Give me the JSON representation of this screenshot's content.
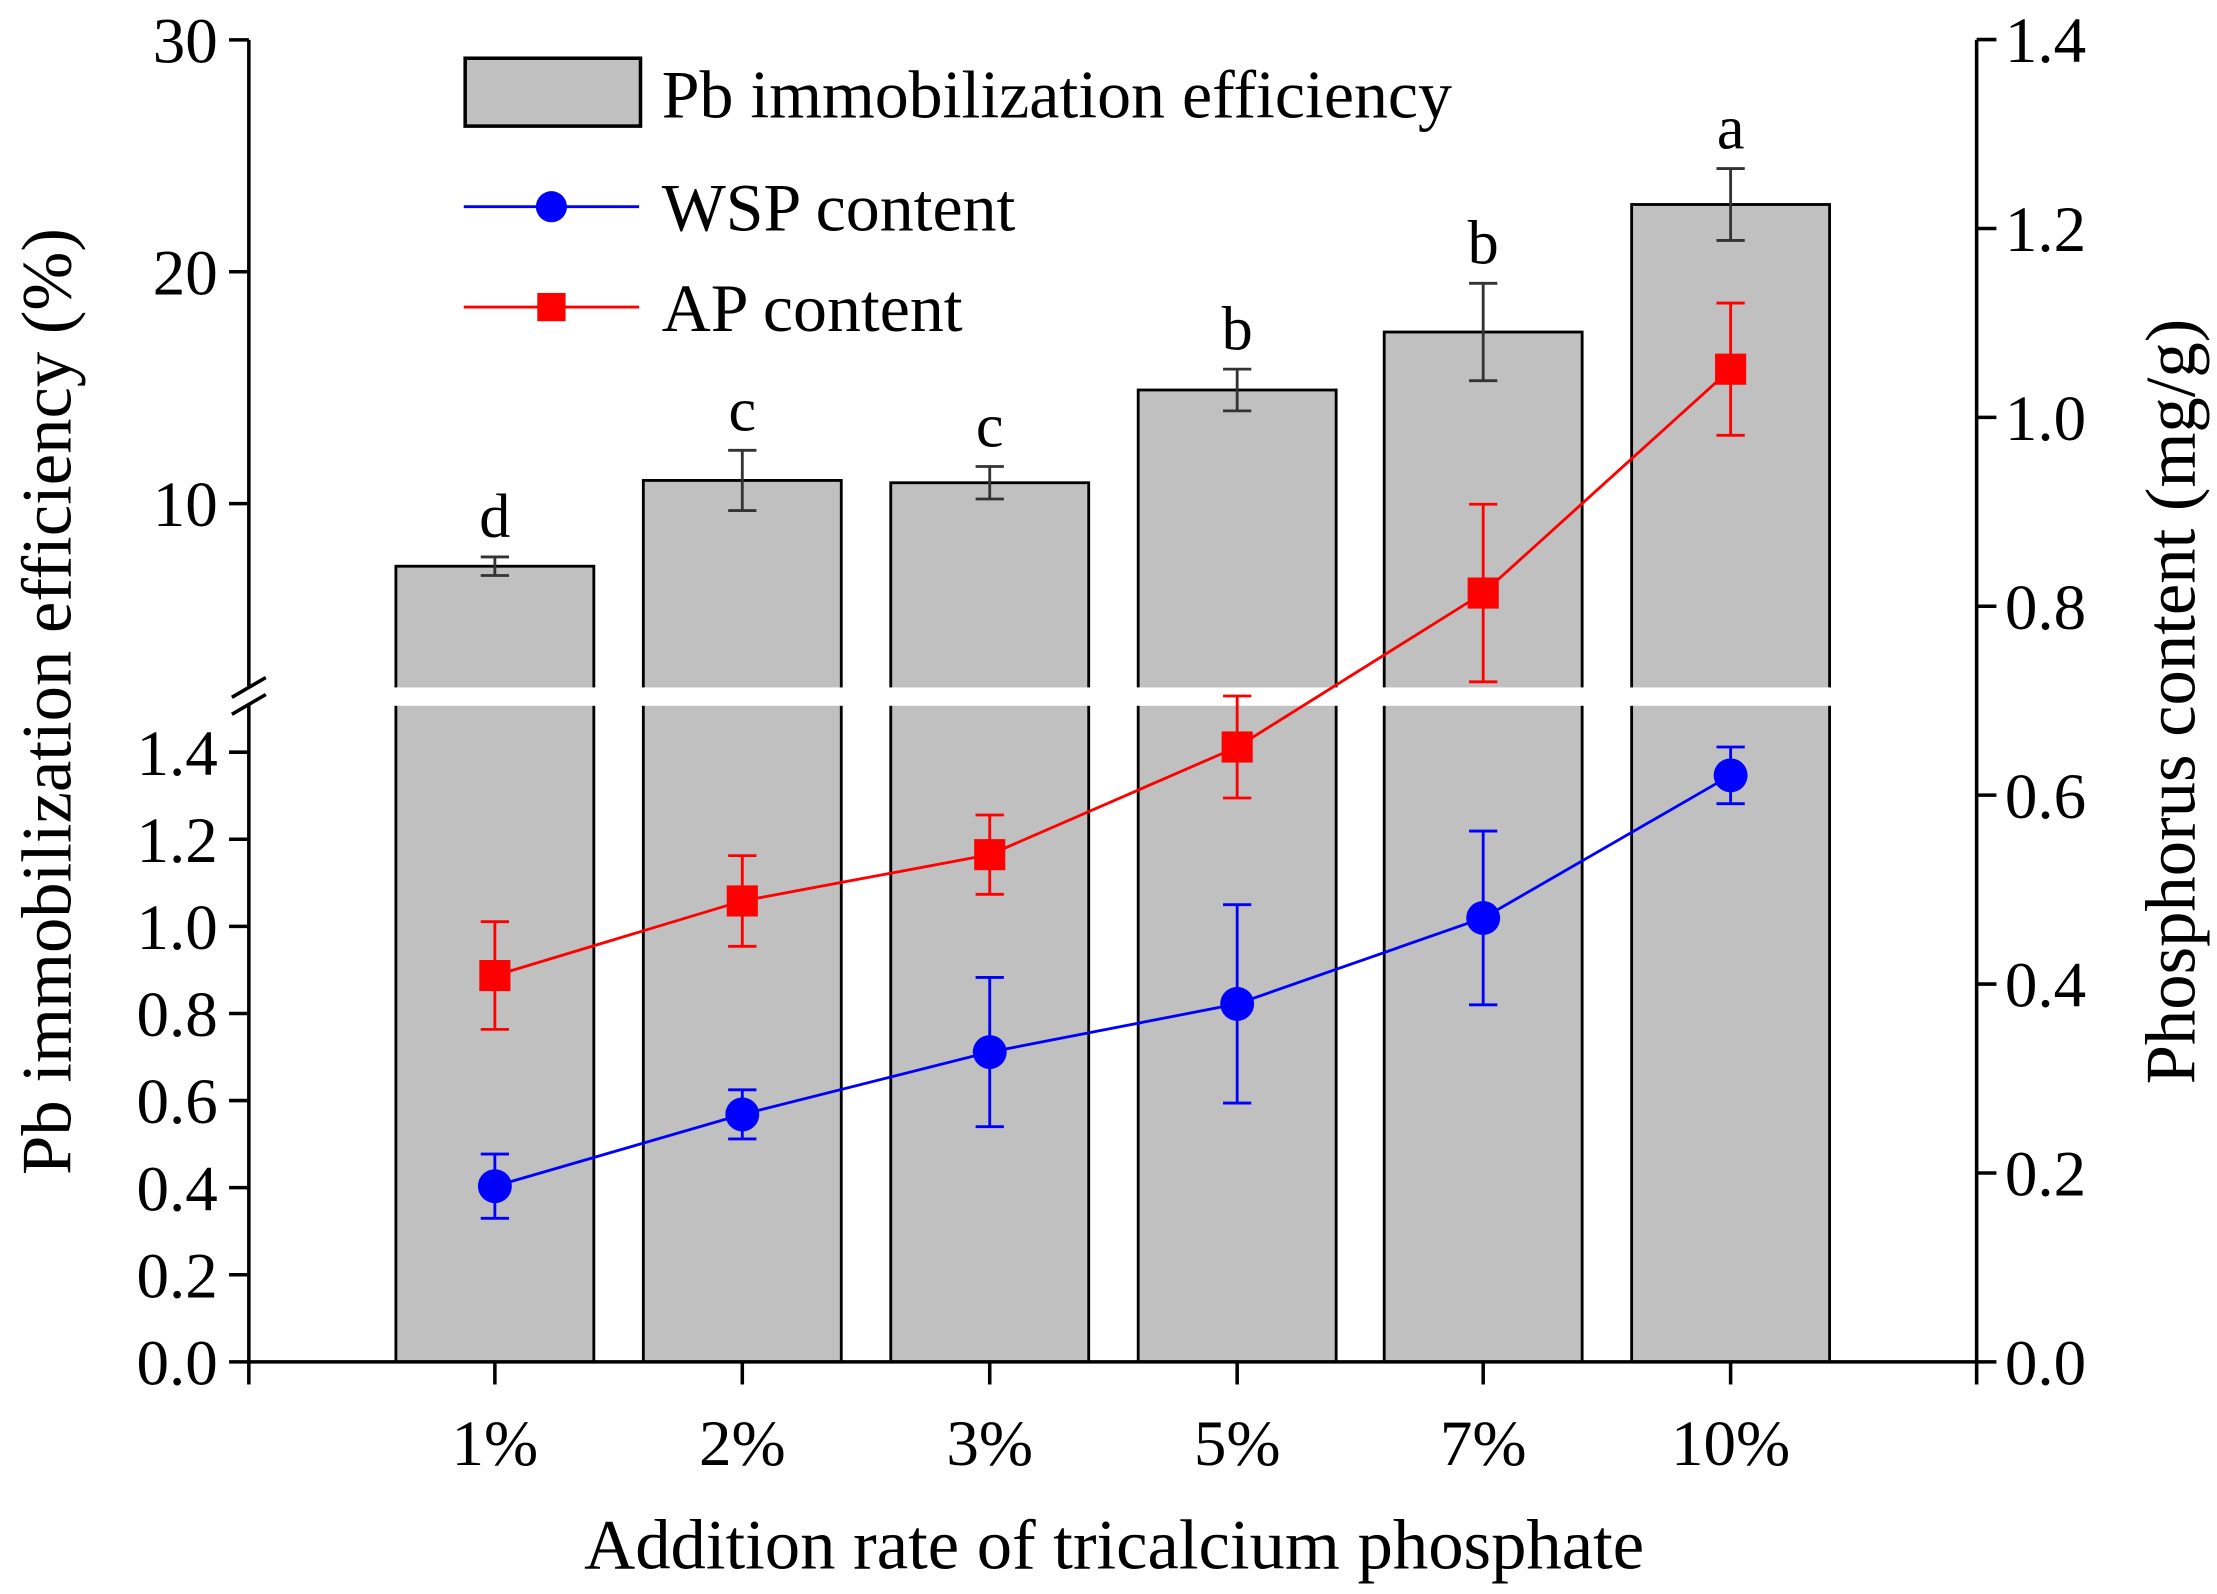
{
  "chart_data": {
    "type": "bar",
    "categories": [
      "1%",
      "2%",
      "3%",
      "5%",
      "7%",
      "10%"
    ],
    "xlabel": "Addition rate of tricalcium phosphate",
    "ylabel_left": "Pb immobilization efficiency (%)",
    "ylabel_right": "Phosphorus content (mg/g)",
    "left_axis": {
      "broken": true,
      "lower_range": [
        0,
        1.5
      ],
      "lower_ticks": [
        "0.0",
        "0.2",
        "0.4",
        "0.6",
        "0.8",
        "1.0",
        "1.2",
        "1.4"
      ],
      "upper_range": [
        1.8,
        30
      ],
      "upper_ticks": [
        "10",
        "20",
        "30"
      ]
    },
    "right_axis": {
      "range": [
        0,
        1.4
      ],
      "ticks": [
        "0.0",
        "0.2",
        "0.4",
        "0.6",
        "0.8",
        "1.0",
        "1.2",
        "1.4"
      ]
    },
    "series": [
      {
        "name": "Pb immobilization efficiency",
        "type": "bar",
        "axis": "left",
        "color": "#c0c0c0",
        "values": [
          7.3,
          11.0,
          10.9,
          14.9,
          17.4,
          22.9
        ],
        "errors": [
          0.4,
          1.3,
          0.7,
          0.9,
          2.1,
          1.55
        ],
        "significance": [
          "d",
          "c",
          "c",
          "b",
          "b",
          "a"
        ]
      },
      {
        "name": "WSP content",
        "type": "line",
        "marker": "circle",
        "axis": "right",
        "color": "#0000ff",
        "values": [
          0.186,
          0.262,
          0.328,
          0.379,
          0.47,
          0.621
        ],
        "errors": [
          0.034,
          0.026,
          0.079,
          0.105,
          0.092,
          0.03
        ]
      },
      {
        "name": "AP content",
        "type": "line",
        "marker": "square",
        "axis": "right",
        "color": "#ff0000",
        "values": [
          0.409,
          0.488,
          0.537,
          0.651,
          0.814,
          1.051
        ],
        "errors": [
          0.057,
          0.048,
          0.042,
          0.054,
          0.094,
          0.07
        ]
      }
    ],
    "legend": {
      "placement": "top-left",
      "entries": [
        "Pb immobilization efficiency",
        "WSP content",
        "AP content"
      ]
    },
    "grid": false
  }
}
